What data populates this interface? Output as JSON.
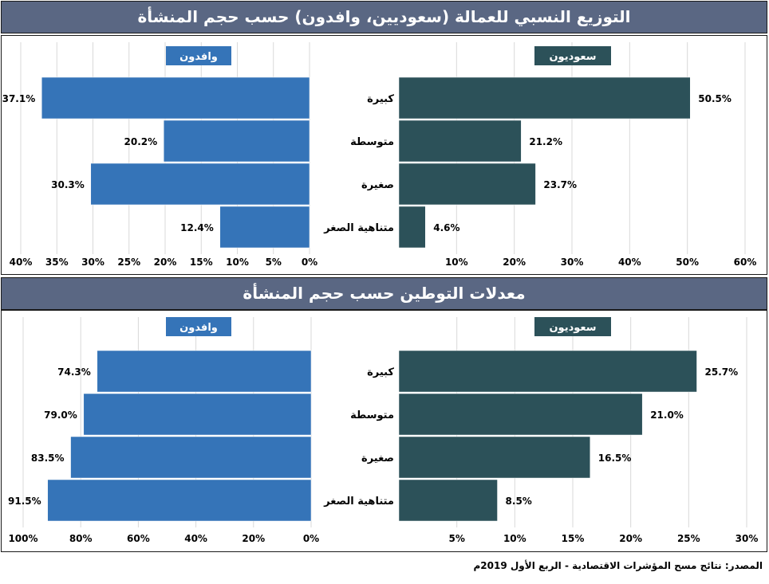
{
  "colors": {
    "header_band": "#5a6783",
    "saudi": "#2c5159",
    "expat": "#3574b8"
  },
  "charts": [
    {
      "title": "التوزيع النسبي للعمالة (سعوديين، وافدون) حسب حجم المنشأة",
      "expat_legend": "وافدون",
      "saudi_legend": "سعوديون",
      "categories": [
        "كبيرة",
        "متوسطة",
        "صغيرة",
        "متناهية الصغر"
      ],
      "expat_axis_ticks": [
        "40%",
        "35%",
        "30%",
        "25%",
        "20%",
        "15%",
        "10%",
        "5%",
        "0%"
      ],
      "saudi_axis_ticks": [
        "10%",
        "20%",
        "30%",
        "40%",
        "50%",
        "60%"
      ],
      "expat_value_labels": [
        "37.1%",
        "20.2%",
        "30.3%",
        "12.4%"
      ],
      "saudi_value_labels": [
        "50.5%",
        "21.2%",
        "23.7%",
        "4.6%"
      ]
    },
    {
      "title": "معدلات التوطين حسب حجم المنشأة",
      "expat_legend": "وافدون",
      "saudi_legend": "سعوديون",
      "categories": [
        "كبيرة",
        "متوسطة",
        "صغيرة",
        "متناهية الصغر"
      ],
      "expat_axis_ticks": [
        "100%",
        "80%",
        "60%",
        "40%",
        "20%",
        "0%"
      ],
      "saudi_axis_ticks": [
        "5%",
        "10%",
        "15%",
        "20%",
        "25%",
        "30%"
      ],
      "expat_value_labels": [
        "74.3%",
        "79.0%",
        "83.5%",
        "91.5%"
      ],
      "saudi_value_labels": [
        "25.7%",
        "21.0%",
        "16.5%",
        "8.5%"
      ]
    }
  ],
  "chart_data": [
    {
      "type": "bar",
      "title": "التوزيع النسبي للعمالة (سعوديين، وافدون) حسب حجم المنشأة",
      "categories": [
        "كبيرة",
        "متوسطة",
        "صغيرة",
        "متناهية الصغر"
      ],
      "series": [
        {
          "name": "وافدون",
          "values": [
            37.1,
            20.2,
            30.3,
            12.4
          ]
        },
        {
          "name": "سعوديون",
          "values": [
            50.5,
            21.2,
            23.7,
            4.6
          ]
        }
      ],
      "expat_xlim": [
        0,
        40
      ],
      "saudi_xlim": [
        0,
        60
      ],
      "grid": true
    },
    {
      "type": "bar",
      "title": "معدلات التوطين حسب حجم المنشأة",
      "categories": [
        "كبيرة",
        "متوسطة",
        "صغيرة",
        "متناهية الصغر"
      ],
      "series": [
        {
          "name": "وافدون",
          "values": [
            74.3,
            79.0,
            83.5,
            91.5
          ]
        },
        {
          "name": "سعوديون",
          "values": [
            25.7,
            21.0,
            16.5,
            8.5
          ]
        }
      ],
      "expat_xlim": [
        0,
        100
      ],
      "saudi_xlim": [
        0,
        30
      ],
      "grid": true
    }
  ],
  "source": "المصدر: نتائج مسح المؤشرات الاقتصادية - الربع الأول 2019م"
}
